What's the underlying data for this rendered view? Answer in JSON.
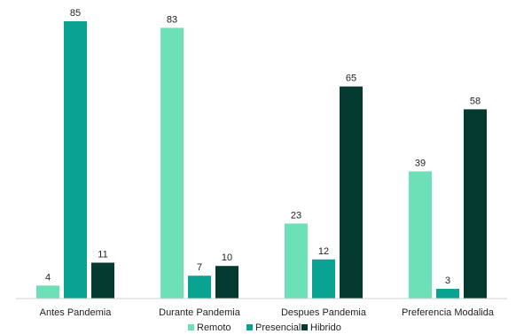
{
  "chart_data": {
    "type": "bar",
    "categories": [
      "Antes Pandemia",
      "Durante Pandemia",
      "Despues Pandemia",
      "Preferencia Modalida"
    ],
    "series": [
      {
        "name": "Remoto",
        "color": "#6ee0b8",
        "values": [
          4,
          83,
          23,
          39
        ]
      },
      {
        "name": "Presencial",
        "color": "#0aa391",
        "values": [
          85,
          7,
          12,
          3
        ]
      },
      {
        "name": "Hibrido",
        "color": "#053a30",
        "values": [
          11,
          10,
          65,
          58
        ]
      }
    ],
    "ylim": [
      0,
      85
    ],
    "grid": false,
    "legend_position": "bottom"
  }
}
